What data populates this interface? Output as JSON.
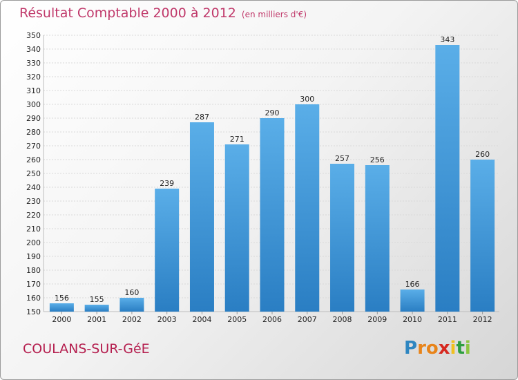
{
  "chart_data": {
    "type": "bar",
    "title": "Résultat Comptable 2000 à 2012",
    "subtitle": "(en milliers d'€)",
    "categories": [
      "2000",
      "2001",
      "2002",
      "2003",
      "2004",
      "2005",
      "2006",
      "2007",
      "2008",
      "2009",
      "2010",
      "2011",
      "2012"
    ],
    "values": [
      156,
      155,
      160,
      239,
      287,
      271,
      290,
      300,
      257,
      256,
      166,
      343,
      260
    ],
    "ylim": [
      150,
      350
    ],
    "ystep": 10,
    "grid": true,
    "bar_color": "#3a97dc",
    "bar_color_light": "#5aaee8",
    "bar_color_dark": "#2a7ec3"
  },
  "footer": {
    "location": "COULANS-SUR-GéE",
    "logo_letters": [
      "P",
      "r",
      "o",
      "x",
      "i",
      "t",
      "i"
    ],
    "logo_colors": [
      "#2e86c1",
      "#e8841a",
      "#e8841a",
      "#d6281f",
      "#f0c020",
      "#2e9e3f",
      "#8cc63f"
    ]
  }
}
